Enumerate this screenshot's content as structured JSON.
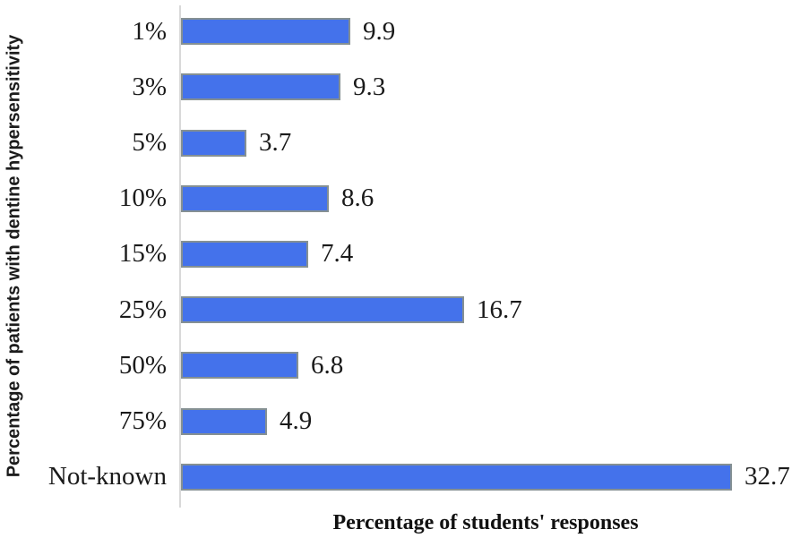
{
  "chart_data": {
    "type": "bar",
    "orientation": "horizontal",
    "title": "",
    "xlabel": "Percentage of students' responses",
    "ylabel": "Percentage of patients with dentine hypersensitivity",
    "categories": [
      "1%",
      "3%",
      "5%",
      "10%",
      "15%",
      "25%",
      "50%",
      "75%",
      "Not-known"
    ],
    "values": [
      9.9,
      9.3,
      3.7,
      8.6,
      7.4,
      16.7,
      6.8,
      4.9,
      32.7
    ],
    "value_labels": [
      "9.9",
      "9.3",
      "3.7",
      "8.6",
      "7.4",
      "16.7",
      "6.8",
      "4.9",
      "32.7"
    ],
    "xlim": [
      0,
      35
    ],
    "grid": false,
    "legend": false,
    "bar_color": "#4472eb",
    "bar_border_color": "#859093",
    "axis_line_color": "#d9d9d9",
    "text_color": "#1a1a1a"
  }
}
